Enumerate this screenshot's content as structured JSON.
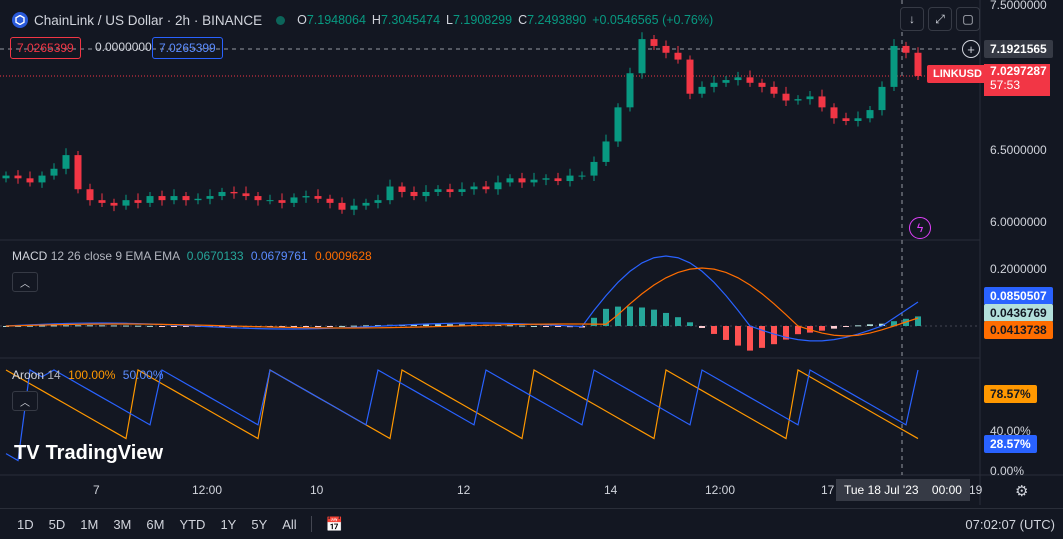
{
  "header": {
    "symbol": "ChainLink / US Dollar · 2h · BINANCE",
    "open_k": "O",
    "open": "7.1948064",
    "high_k": "H",
    "high": "7.3045474",
    "low_k": "L",
    "low": "7.1908299",
    "close_k": "C",
    "close": "7.2493890",
    "change": "+0.0546565 (+0.76%)"
  },
  "order": {
    "sell": "7.0265399",
    "spread": "0.0000000",
    "buy": "7.0265399"
  },
  "price_axis": {
    "ticks": [
      "7.5000000",
      "6.5000000",
      "6.0000000"
    ],
    "crosshair_value": "7.1921565",
    "symbol_tag": "LINKUSD",
    "last_price": "7.0297287",
    "countdown": "57:53"
  },
  "macd": {
    "title": "MACD",
    "params": "12 26 close 9 EMA EMA",
    "hist": "0.0670133",
    "macd_val": "0.0679761",
    "signal_val": "0.0009628",
    "axis_tick": "0.2000000",
    "macd_label": "0.0850507",
    "hist_label": "0.0436769",
    "signal_label": "0.0413738"
  },
  "aroon": {
    "title": "Aroon",
    "period": "14",
    "up": "100.00%",
    "down": "50.00%",
    "ticks": [
      "40.00%",
      "0.00%"
    ],
    "up_label": "78.57%",
    "down_label": "28.57%"
  },
  "time_axis": {
    "labels": [
      "7",
      "12:00",
      "10",
      "12",
      "14",
      "12:00",
      "17",
      "19"
    ],
    "crosshair_time": "Tue 18 Jul '23",
    "crosshair_clock": "00:00"
  },
  "branding": "TradingView",
  "bottom": {
    "timeframes": [
      "1D",
      "5D",
      "1M",
      "3M",
      "6M",
      "YTD",
      "1Y",
      "5Y",
      "All"
    ],
    "clock": "07:02:07 (UTC)"
  },
  "colors": {
    "up": "#089981",
    "down": "#f23645",
    "macd": "#2962ff",
    "signal": "#ff6d00",
    "aroon_up": "#ff9800",
    "aroon_down": "#2962ff"
  },
  "chart_data": {
    "type": "candlestick",
    "panes": [
      "price",
      "MACD",
      "Aroon"
    ],
    "price_range": [
      5.85,
      7.55
    ],
    "candles_close_approx": [
      6.3,
      6.28,
      6.25,
      6.3,
      6.35,
      6.45,
      6.2,
      6.12,
      6.1,
      6.08,
      6.12,
      6.1,
      6.15,
      6.12,
      6.15,
      6.12,
      6.13,
      6.15,
      6.18,
      6.17,
      6.15,
      6.12,
      6.12,
      6.1,
      6.14,
      6.15,
      6.13,
      6.1,
      6.05,
      6.08,
      6.1,
      6.12,
      6.22,
      6.18,
      6.15,
      6.18,
      6.2,
      6.18,
      6.2,
      6.22,
      6.2,
      6.25,
      6.28,
      6.25,
      6.27,
      6.28,
      6.26,
      6.3,
      6.3,
      6.4,
      6.55,
      6.8,
      7.05,
      7.3,
      7.25,
      7.2,
      7.15,
      6.9,
      6.95,
      6.98,
      7.0,
      7.02,
      6.98,
      6.95,
      6.9,
      6.85,
      6.86,
      6.88,
      6.8,
      6.72,
      6.7,
      6.72,
      6.78,
      6.95,
      7.25,
      7.2,
      7.03
    ]
  }
}
